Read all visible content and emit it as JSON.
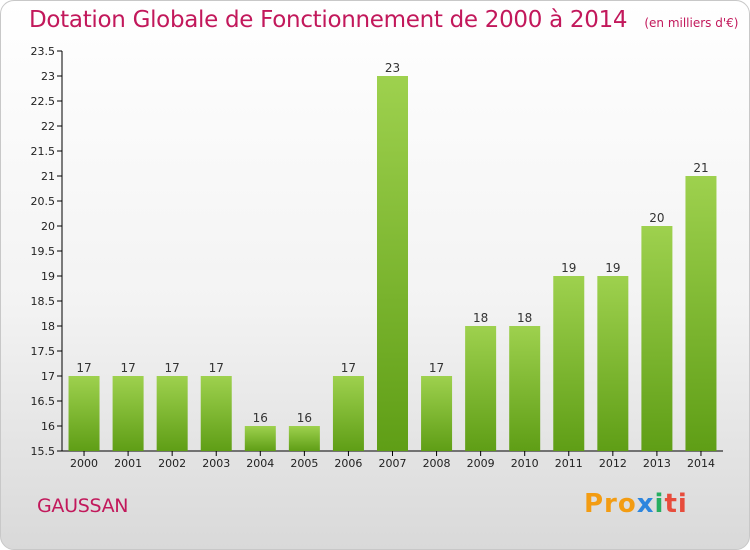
{
  "header": {
    "title": "Dotation Globale de Fonctionnement de 2000 à 2014",
    "unit": "(en milliers d'€)"
  },
  "footer": {
    "commune": "GAUSSAN",
    "logo": "Proxiti",
    "logo_parts": [
      "Pro",
      "x",
      "i",
      "ti"
    ]
  },
  "colors": {
    "title": "#c2185b",
    "bar_light": "#9ed14e",
    "bar_dark": "#5f9e16"
  },
  "chart_data": {
    "type": "bar",
    "title": "Dotation Globale de Fonctionnement de 2000 à 2014",
    "subtitle": "(en milliers d'€)",
    "categories": [
      "2000",
      "2001",
      "2002",
      "2003",
      "2004",
      "2005",
      "2006",
      "2007",
      "2008",
      "2009",
      "2010",
      "2011",
      "2012",
      "2013",
      "2014"
    ],
    "values": [
      17,
      17,
      17,
      17,
      16,
      16,
      17,
      23,
      17,
      18,
      18,
      19,
      19,
      20,
      21
    ],
    "ylim": [
      15.5,
      23.5
    ],
    "yticks": [
      "15.5",
      "16",
      "16.5",
      "17",
      "17.5",
      "18",
      "18.5",
      "19",
      "19.5",
      "20",
      "20.5",
      "21",
      "21.5",
      "22",
      "22.5",
      "23",
      "23.5"
    ],
    "grid": false,
    "legend": "none"
  }
}
